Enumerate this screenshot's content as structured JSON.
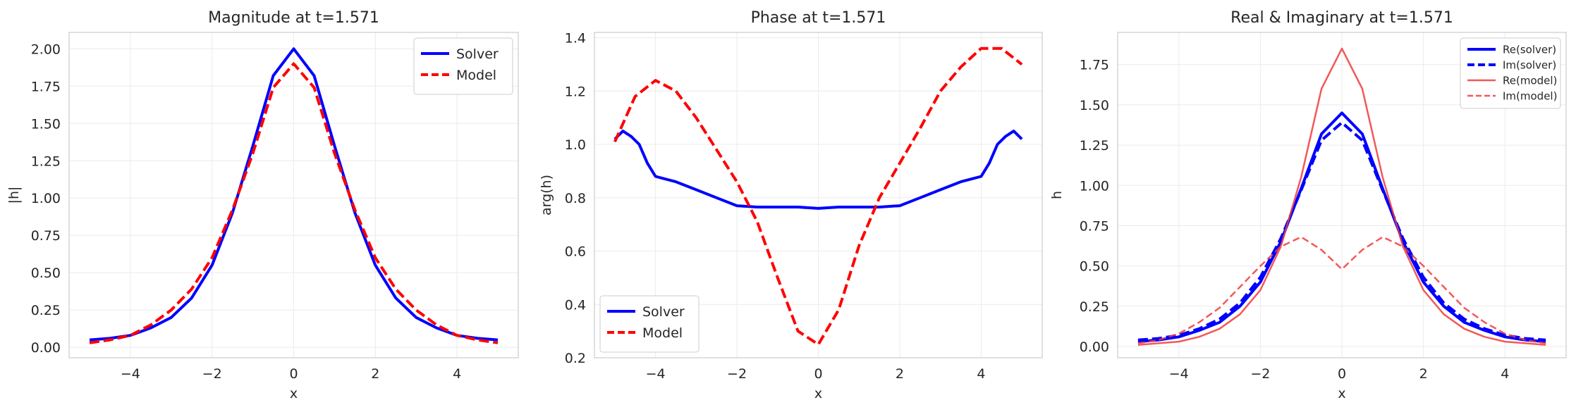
{
  "chart_data": [
    {
      "type": "line",
      "title": "Magnitude at t=1.571",
      "xlabel": "x",
      "ylabel": "|h|",
      "xlim": [
        -5.5,
        5.5
      ],
      "ylim": [
        -0.07,
        2.11
      ],
      "xticks": [
        -4,
        -2,
        0,
        2,
        4
      ],
      "yticks": [
        0.0,
        0.25,
        0.5,
        0.75,
        1.0,
        1.25,
        1.5,
        1.75,
        2.0
      ],
      "ytick_format": 2,
      "grid": true,
      "legend": "top-right",
      "series": [
        {
          "name": "Solver",
          "color": "#0000ff",
          "style": "solid",
          "width": "bold",
          "x": [
            -5,
            -4.5,
            -4,
            -3.5,
            -3,
            -2.5,
            -2,
            -1.5,
            -1,
            -0.5,
            0,
            0.5,
            1,
            1.5,
            2,
            2.5,
            3,
            3.5,
            4,
            4.5,
            5
          ],
          "y": [
            0.05,
            0.06,
            0.08,
            0.13,
            0.2,
            0.33,
            0.55,
            0.9,
            1.35,
            1.82,
            2.0,
            1.82,
            1.35,
            0.9,
            0.55,
            0.33,
            0.2,
            0.13,
            0.08,
            0.06,
            0.05
          ]
        },
        {
          "name": "Model",
          "color": "#ff0000",
          "style": "dashed",
          "width": "bold",
          "x": [
            -5,
            -4.5,
            -4,
            -3.5,
            -3,
            -2.5,
            -2,
            -1.5,
            -1,
            -0.5,
            0,
            0.5,
            1,
            1.5,
            2,
            2.5,
            3,
            3.5,
            4,
            4.5,
            5
          ],
          "y": [
            0.03,
            0.05,
            0.08,
            0.15,
            0.25,
            0.39,
            0.6,
            0.92,
            1.3,
            1.74,
            1.9,
            1.74,
            1.3,
            0.92,
            0.6,
            0.39,
            0.25,
            0.15,
            0.08,
            0.05,
            0.03
          ]
        }
      ]
    },
    {
      "type": "line",
      "title": "Phase at t=1.571",
      "xlabel": "x",
      "ylabel": "arg(h)",
      "xlim": [
        -5.5,
        5.5
      ],
      "ylim": [
        0.2,
        1.42
      ],
      "xticks": [
        -4,
        -2,
        0,
        2,
        4
      ],
      "yticks": [
        0.2,
        0.4,
        0.6,
        0.8,
        1.0,
        1.2,
        1.4
      ],
      "ytick_format": 1,
      "grid": true,
      "legend": "bottom-left",
      "series": [
        {
          "name": "Solver",
          "color": "#0000ff",
          "style": "solid",
          "width": "bold",
          "x": [
            -5,
            -4.8,
            -4.6,
            -4.4,
            -4.2,
            -4,
            -3.5,
            -3,
            -2.5,
            -2,
            -1.5,
            -1,
            -0.5,
            0,
            0.5,
            1,
            1.5,
            2,
            2.5,
            3,
            3.5,
            4,
            4.2,
            4.4,
            4.6,
            4.8,
            5
          ],
          "y": [
            1.02,
            1.05,
            1.03,
            1.0,
            0.93,
            0.88,
            0.86,
            0.83,
            0.8,
            0.77,
            0.765,
            0.765,
            0.765,
            0.76,
            0.765,
            0.765,
            0.765,
            0.77,
            0.8,
            0.83,
            0.86,
            0.88,
            0.93,
            1.0,
            1.03,
            1.05,
            1.02
          ]
        },
        {
          "name": "Model",
          "color": "#ff0000",
          "style": "dashed",
          "width": "bold",
          "x": [
            -5,
            -4.5,
            -4,
            -3.5,
            -3,
            -2.5,
            -2,
            -1.5,
            -1,
            -0.5,
            0,
            0.5,
            1,
            1.5,
            2,
            2.5,
            3,
            3.5,
            4,
            4.5,
            5
          ],
          "y": [
            1.01,
            1.18,
            1.24,
            1.2,
            1.1,
            0.98,
            0.86,
            0.71,
            0.5,
            0.3,
            0.25,
            0.38,
            0.62,
            0.8,
            0.93,
            1.06,
            1.2,
            1.29,
            1.36,
            1.36,
            1.3
          ]
        }
      ]
    },
    {
      "type": "line",
      "title": "Real & Imaginary at t=1.571",
      "xlabel": "x",
      "ylabel": "h",
      "xlim": [
        -5.5,
        5.5
      ],
      "ylim": [
        -0.07,
        1.95
      ],
      "xticks": [
        -4,
        -2,
        0,
        2,
        4
      ],
      "yticks": [
        0.0,
        0.25,
        0.5,
        0.75,
        1.0,
        1.25,
        1.5,
        1.75
      ],
      "ytick_format": 2,
      "grid": true,
      "legend": "top-right",
      "series": [
        {
          "name": "Re(solver)",
          "color": "#0000ff",
          "style": "solid",
          "width": "bold",
          "x": [
            -5,
            -4.5,
            -4,
            -3.5,
            -3,
            -2.5,
            -2,
            -1.5,
            -1,
            -0.5,
            0,
            0.5,
            1,
            1.5,
            2,
            2.5,
            3,
            3.5,
            4,
            4.5,
            5
          ],
          "y": [
            0.03,
            0.04,
            0.06,
            0.1,
            0.15,
            0.25,
            0.4,
            0.65,
            0.98,
            1.32,
            1.45,
            1.32,
            0.98,
            0.65,
            0.4,
            0.25,
            0.15,
            0.1,
            0.06,
            0.04,
            0.03
          ]
        },
        {
          "name": "Im(solver)",
          "color": "#0000ff",
          "style": "dashed",
          "width": "bold",
          "x": [
            -5,
            -4.5,
            -4,
            -3.5,
            -3,
            -2.5,
            -2,
            -1.5,
            -1,
            -0.5,
            0,
            0.5,
            1,
            1.5,
            2,
            2.5,
            3,
            3.5,
            4,
            4.5,
            5
          ],
          "y": [
            0.04,
            0.05,
            0.07,
            0.11,
            0.17,
            0.27,
            0.43,
            0.67,
            0.97,
            1.28,
            1.39,
            1.28,
            0.97,
            0.67,
            0.43,
            0.27,
            0.17,
            0.11,
            0.07,
            0.05,
            0.04
          ]
        },
        {
          "name": "Re(model)",
          "color": "#f03c3c",
          "style": "solid",
          "width": "thin",
          "x": [
            -5,
            -4.5,
            -4,
            -3.5,
            -3,
            -2.5,
            -2,
            -1.5,
            -1,
            -0.5,
            0,
            0.5,
            1,
            1.5,
            2,
            2.5,
            3,
            3.5,
            4,
            4.5,
            5
          ],
          "y": [
            0.01,
            0.02,
            0.03,
            0.06,
            0.11,
            0.2,
            0.35,
            0.62,
            1.05,
            1.6,
            1.85,
            1.6,
            1.05,
            0.62,
            0.35,
            0.2,
            0.11,
            0.06,
            0.03,
            0.02,
            0.01
          ]
        },
        {
          "name": "Im(model)",
          "color": "#f03c3c",
          "style": "dashed",
          "width": "thin",
          "x": [
            -5,
            -4.5,
            -4,
            -3.5,
            -3,
            -2.5,
            -2,
            -1.5,
            -1,
            -0.5,
            0,
            0.5,
            1,
            1.5,
            2,
            2.5,
            3,
            3.5,
            4,
            4.5,
            5
          ],
          "y": [
            0.02,
            0.04,
            0.08,
            0.15,
            0.24,
            0.37,
            0.5,
            0.62,
            0.68,
            0.6,
            0.48,
            0.6,
            0.68,
            0.62,
            0.5,
            0.37,
            0.24,
            0.15,
            0.08,
            0.04,
            0.02
          ]
        }
      ]
    }
  ]
}
